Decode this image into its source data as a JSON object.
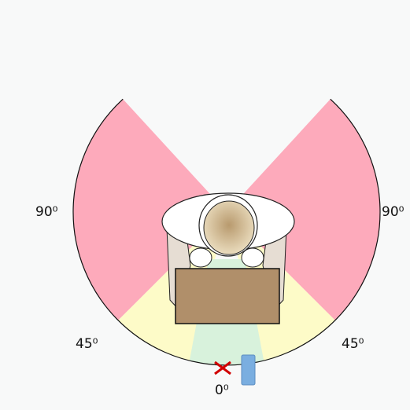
{
  "angle_labels": [
    "90⁰",
    "90⁰",
    "45⁰",
    "45⁰",
    "0⁰"
  ]
}
